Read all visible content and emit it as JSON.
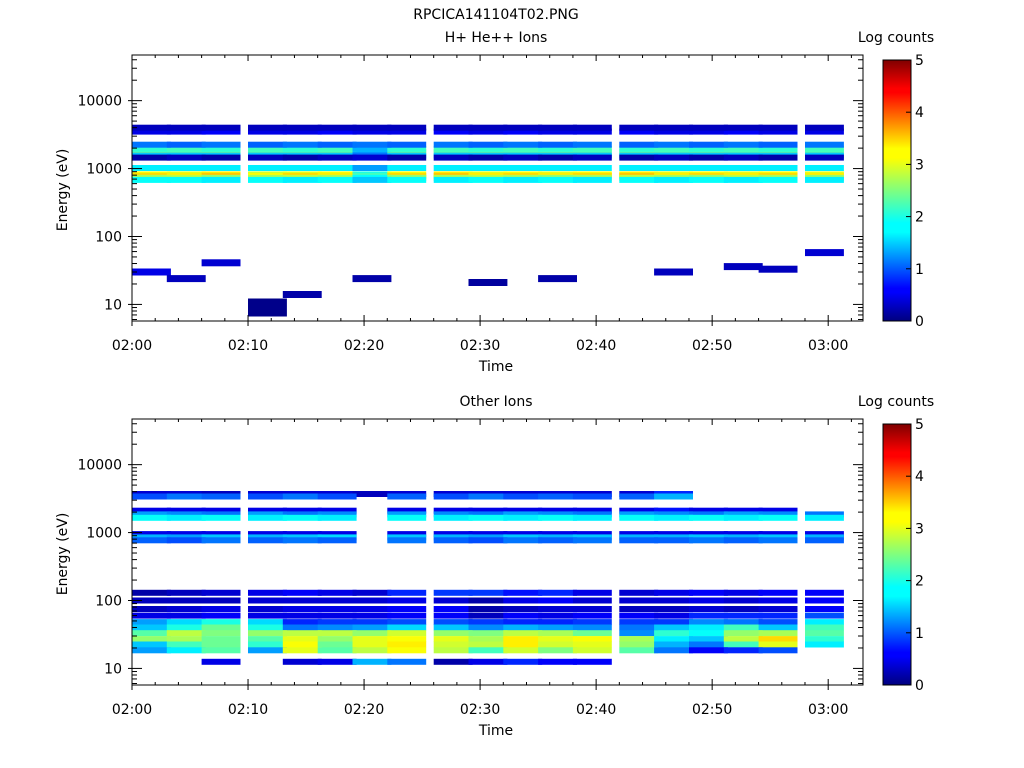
{
  "figure_title": "RPCICA141104T02.PNG",
  "chart_data": [
    {
      "type": "heatmap",
      "title": "H+ He++ Ions",
      "xlabel": "Time",
      "ylabel": "Energy (eV)",
      "x_ticks": [
        "02:00",
        "02:10",
        "02:20",
        "02:30",
        "02:40",
        "02:50",
        "03:00"
      ],
      "x_range": [
        "02:00",
        "03:03"
      ],
      "y_scale": "log",
      "y_ticks": [
        "10",
        "100",
        "1000",
        "10000"
      ],
      "y_range": [
        5.7,
        47000
      ],
      "colorbar": {
        "label": "Log counts",
        "range": [
          0,
          5
        ],
        "ticks": [
          "0",
          "1",
          "2",
          "3",
          "4",
          "5"
        ]
      },
      "time_bins": [
        "02:00",
        "02:03",
        "02:06",
        "02:10",
        "02:13",
        "02:16",
        "02:19",
        "02:22",
        "02:26",
        "02:29",
        "02:32",
        "02:35",
        "02:38",
        "02:42",
        "02:45",
        "02:48",
        "02:51",
        "02:54",
        "02:58"
      ],
      "rows": [
        {
          "energy": 820,
          "values": [
            3.1,
            3.0,
            3.2,
            2.9,
            3.0,
            3.1,
            2.0,
            3.1,
            3.2,
            3.0,
            3.1,
            3.0,
            3.1,
            3.2,
            3.0,
            3.1,
            3.0,
            3.1,
            3.0
          ]
        },
        {
          "energy": 780,
          "values": [
            3.3,
            3.2,
            3.4,
            3.1,
            3.3,
            3.2,
            2.2,
            3.3,
            3.4,
            3.2,
            3.3,
            3.2,
            3.3,
            3.4,
            3.2,
            3.3,
            3.2,
            3.3,
            3.2
          ]
        },
        {
          "energy": 730,
          "values": [
            2.7,
            2.8,
            2.6,
            2.7,
            2.8,
            2.7,
            1.9,
            2.6,
            2.7,
            2.8,
            2.7,
            2.6,
            2.7,
            2.8,
            2.7,
            2.6,
            2.8,
            2.7,
            2.6
          ]
        },
        {
          "energy": 680,
          "values": [
            1.9,
            1.9,
            1.8,
            1.9,
            1.8,
            1.9,
            1.6,
            1.9,
            1.8,
            1.9,
            1.8,
            1.9,
            1.8,
            1.9,
            1.8,
            1.9,
            1.8,
            1.9,
            1.8
          ]
        },
        {
          "energy": 1020,
          "values": [
            1.8,
            1.8,
            1.8,
            1.8,
            1.8,
            1.8,
            1.4,
            1.8,
            1.8,
            1.8,
            1.8,
            1.8,
            1.8,
            1.8,
            1.8,
            1.8,
            1.8,
            1.8,
            1.8
          ]
        },
        {
          "energy": 1750,
          "values": [
            2.6,
            2.5,
            2.6,
            2.5,
            2.5,
            2.6,
            1.5,
            2.6,
            2.5,
            2.6,
            2.5,
            2.6,
            2.5,
            2.6,
            2.5,
            2.6,
            2.5,
            2.6,
            2.5
          ]
        },
        {
          "energy": 1950,
          "values": [
            2.1,
            2.2,
            2.1,
            2.2,
            2.1,
            2.2,
            1.5,
            2.1,
            2.2,
            2.1,
            2.2,
            2.1,
            2.2,
            2.1,
            2.2,
            2.1,
            2.2,
            2.1,
            2.2
          ]
        },
        {
          "energy": 1560,
          "values": [
            1.6,
            1.6,
            1.6,
            1.6,
            1.6,
            1.6,
            1.2,
            1.6,
            1.6,
            1.6,
            1.6,
            1.6,
            1.6,
            1.6,
            1.6,
            1.6,
            1.6,
            1.6,
            1.6
          ]
        },
        {
          "energy": 2250,
          "values": [
            1.2,
            1.1,
            1.2,
            1.1,
            1.2,
            1.1,
            1.2,
            1.1,
            1.2,
            1.1,
            1.2,
            1.1,
            1.2,
            1.1,
            1.2,
            1.1,
            1.2,
            1.1,
            1.2
          ]
        },
        {
          "energy": 3500,
          "values": [
            0.5,
            0.5,
            0.6,
            0.5,
            0.5,
            0.6,
            0.5,
            0.5,
            0.6,
            0.5,
            0.6,
            0.5,
            0.5,
            0.6,
            0.5,
            0.5,
            0.6,
            0.5,
            0.5
          ]
        },
        {
          "energy": 4000,
          "values": [
            0.3,
            0.3,
            0.3,
            0.3,
            0.3,
            0.3,
            0.3,
            0.3,
            0.3,
            0.3,
            0.3,
            0.3,
            0.3,
            0.3,
            0.3,
            0.3,
            0.3,
            0.3,
            0.3
          ]
        },
        {
          "energy": 1450,
          "values": [
            0.2,
            0.3,
            0.2,
            0.3,
            0.2,
            0.3,
            0.4,
            0.2,
            0.3,
            0.2,
            0.3,
            0.2,
            0.3,
            0.2,
            0.3,
            0.2,
            0.3,
            0.2,
            0.3
          ]
        }
      ],
      "low_energy_cells": [
        {
          "t": "02:00",
          "energy": 30,
          "value": 0.5
        },
        {
          "t": "02:03",
          "energy": 24,
          "value": 0.3
        },
        {
          "t": "02:06",
          "energy": 41,
          "value": 0.4
        },
        {
          "t": "02:10",
          "energy": 9,
          "value": 0.05
        },
        {
          "t": "02:13",
          "energy": 14,
          "value": 0.2
        },
        {
          "t": "02:19",
          "energy": 24,
          "value": 0.2
        },
        {
          "t": "02:29",
          "energy": 21,
          "value": 0.15
        },
        {
          "t": "02:35",
          "energy": 24,
          "value": 0.2
        },
        {
          "t": "02:45",
          "energy": 30,
          "value": 0.3
        },
        {
          "t": "02:51",
          "energy": 36,
          "value": 0.3
        },
        {
          "t": "02:54",
          "energy": 33,
          "value": 0.3
        },
        {
          "t": "02:58",
          "energy": 58,
          "value": 0.4
        }
      ]
    },
    {
      "type": "heatmap",
      "title": "Other Ions",
      "xlabel": "Time",
      "ylabel": "Energy (eV)",
      "x_ticks": [
        "02:00",
        "02:10",
        "02:20",
        "02:30",
        "02:40",
        "02:50",
        "03:00"
      ],
      "x_range": [
        "02:00",
        "03:03"
      ],
      "y_scale": "log",
      "y_ticks": [
        "10",
        "100",
        "1000",
        "10000"
      ],
      "y_range": [
        5.7,
        47000
      ],
      "colorbar": {
        "label": "Log counts",
        "range": [
          0,
          5
        ],
        "ticks": [
          "0",
          "1",
          "2",
          "3",
          "4",
          "5"
        ]
      },
      "time_bins": [
        "02:00",
        "02:03",
        "02:06",
        "02:10",
        "02:13",
        "02:16",
        "02:19",
        "02:22",
        "02:26",
        "02:29",
        "02:32",
        "02:35",
        "02:38",
        "02:42",
        "02:45",
        "02:48",
        "02:51",
        "02:54",
        "02:58"
      ],
      "rows": [
        {
          "energy": 3700,
          "values": [
            0.4,
            0.4,
            0.3,
            0.4,
            0.4,
            0.4,
            0.3,
            0.4,
            0.4,
            0.4,
            0.4,
            0.4,
            0.4,
            0.4,
            0.8,
            null,
            null,
            null,
            null
          ]
        },
        {
          "energy": 3400,
          "values": [
            1.0,
            1.2,
            1.1,
            1.0,
            1.2,
            1.0,
            null,
            1.1,
            1.0,
            1.2,
            1.0,
            1.1,
            1.0,
            1.1,
            1.5,
            null,
            null,
            null,
            null
          ]
        },
        {
          "energy": 2100,
          "values": [
            0.5,
            0.5,
            0.5,
            0.5,
            0.5,
            0.5,
            null,
            0.5,
            0.5,
            0.5,
            0.5,
            0.5,
            0.5,
            0.5,
            0.7,
            0.5,
            0.5,
            0.5,
            null
          ]
        },
        {
          "energy": 1850,
          "values": [
            1.4,
            1.3,
            1.2,
            1.4,
            1.2,
            1.3,
            null,
            1.4,
            1.3,
            1.2,
            1.4,
            1.3,
            1.2,
            1.4,
            1.3,
            1.2,
            1.4,
            1.3,
            1.2
          ]
        },
        {
          "energy": 1650,
          "values": [
            1.9,
            1.8,
            1.9,
            1.8,
            1.9,
            1.8,
            null,
            1.9,
            1.8,
            1.9,
            1.8,
            1.9,
            1.8,
            1.9,
            1.8,
            1.9,
            1.8,
            1.9,
            1.8
          ]
        },
        {
          "energy": 950,
          "values": [
            0.5,
            0.5,
            0.5,
            0.5,
            0.5,
            0.5,
            null,
            0.5,
            0.5,
            0.5,
            0.5,
            0.5,
            0.5,
            0.5,
            0.5,
            0.5,
            0.5,
            0.5,
            0.5
          ]
        },
        {
          "energy": 850,
          "values": [
            1.5,
            1.4,
            1.6,
            1.5,
            1.6,
            1.7,
            null,
            1.6,
            1.5,
            1.4,
            1.6,
            1.5,
            1.6,
            1.5,
            1.5,
            1.6,
            1.5,
            1.6,
            1.5
          ]
        },
        {
          "energy": 770,
          "values": [
            1.1,
            1.0,
            1.2,
            1.1,
            1.2,
            1.1,
            null,
            1.2,
            1.1,
            1.0,
            1.2,
            1.1,
            1.2,
            1.1,
            1.1,
            1.2,
            1.1,
            1.2,
            1.1
          ]
        },
        {
          "energy": 130,
          "values": [
            0.2,
            0.3,
            0.4,
            0.5,
            0.6,
            0.5,
            0.4,
            0.8,
            0.9,
            0.9,
            0.7,
            0.8,
            0.5,
            0.4,
            0.5,
            0.6,
            0.5,
            0.6,
            0.6
          ]
        },
        {
          "energy": 100,
          "values": [
            0.3,
            0.3,
            0.3,
            0.4,
            0.4,
            0.4,
            0.4,
            0.5,
            0.4,
            0.2,
            0.5,
            0.6,
            0.4,
            0.4,
            0.4,
            0.5,
            0.4,
            0.5,
            0.6
          ]
        },
        {
          "energy": 75,
          "values": [
            0.3,
            0.4,
            0.5,
            0.4,
            0.5,
            0.5,
            0.5,
            0.6,
            0.6,
            0.2,
            0.3,
            0.4,
            0.4,
            0.3,
            0.3,
            0.4,
            0.3,
            0.4,
            0.6
          ]
        },
        {
          "energy": 60,
          "values": [
            0.5,
            0.5,
            0.6,
            0.5,
            0.5,
            0.5,
            0.5,
            0.6,
            0.6,
            0.3,
            0.6,
            0.5,
            0.6,
            0.6,
            0.5,
            0.8,
            0.8,
            0.8,
            1.0
          ]
        },
        {
          "energy": 48,
          "values": [
            1.4,
            1.7,
            2.0,
            1.7,
            0.8,
            0.9,
            0.9,
            1.0,
            1.0,
            0.9,
            0.8,
            0.8,
            0.9,
            0.9,
            0.9,
            1.3,
            1.2,
            1.0,
            1.8
          ]
        },
        {
          "energy": 40,
          "values": [
            1.6,
            2.0,
            2.4,
            2.0,
            1.2,
            1.3,
            1.4,
            1.7,
            1.6,
            1.3,
            1.5,
            1.4,
            1.3,
            1.2,
            1.6,
            1.8,
            2.2,
            1.6,
            2.2
          ]
        },
        {
          "energy": 33,
          "values": [
            2.3,
            2.8,
            2.5,
            2.6,
            2.8,
            2.8,
            2.6,
            2.9,
            2.6,
            2.5,
            2.8,
            2.7,
            2.4,
            1.3,
            2.1,
            1.9,
            2.6,
            2.7,
            2.3
          ]
        },
        {
          "energy": 27,
          "values": [
            2.6,
            2.7,
            2.4,
            2.3,
            3.0,
            2.6,
            3.0,
            3.1,
            3.0,
            2.7,
            3.2,
            3.0,
            3.1,
            2.7,
            1.8,
            1.6,
            2.8,
            3.3,
            2.1
          ]
        },
        {
          "energy": 22.5,
          "values": [
            1.6,
            2.2,
            2.4,
            2.1,
            3.1,
            2.4,
            3.0,
            3.2,
            2.9,
            2.8,
            3.2,
            2.9,
            3.0,
            2.6,
            1.5,
            1.2,
            2.2,
            3.0,
            1.8
          ]
        },
        {
          "energy": 18.5,
          "values": [
            1.4,
            1.8,
            2.3,
            1.4,
            3.0,
            2.3,
            2.8,
            3.1,
            2.8,
            2.2,
            2.9,
            2.5,
            2.9,
            2.3,
            1.2,
            0.6,
            0.8,
            1.0,
            null
          ]
        },
        {
          "energy": 12.5,
          "values": [
            null,
            null,
            0.5,
            null,
            0.4,
            0.5,
            1.5,
            1.2,
            0.2,
            0.5,
            0.8,
            0.6,
            0.6,
            null,
            null,
            null,
            null,
            null,
            null
          ]
        }
      ]
    }
  ]
}
